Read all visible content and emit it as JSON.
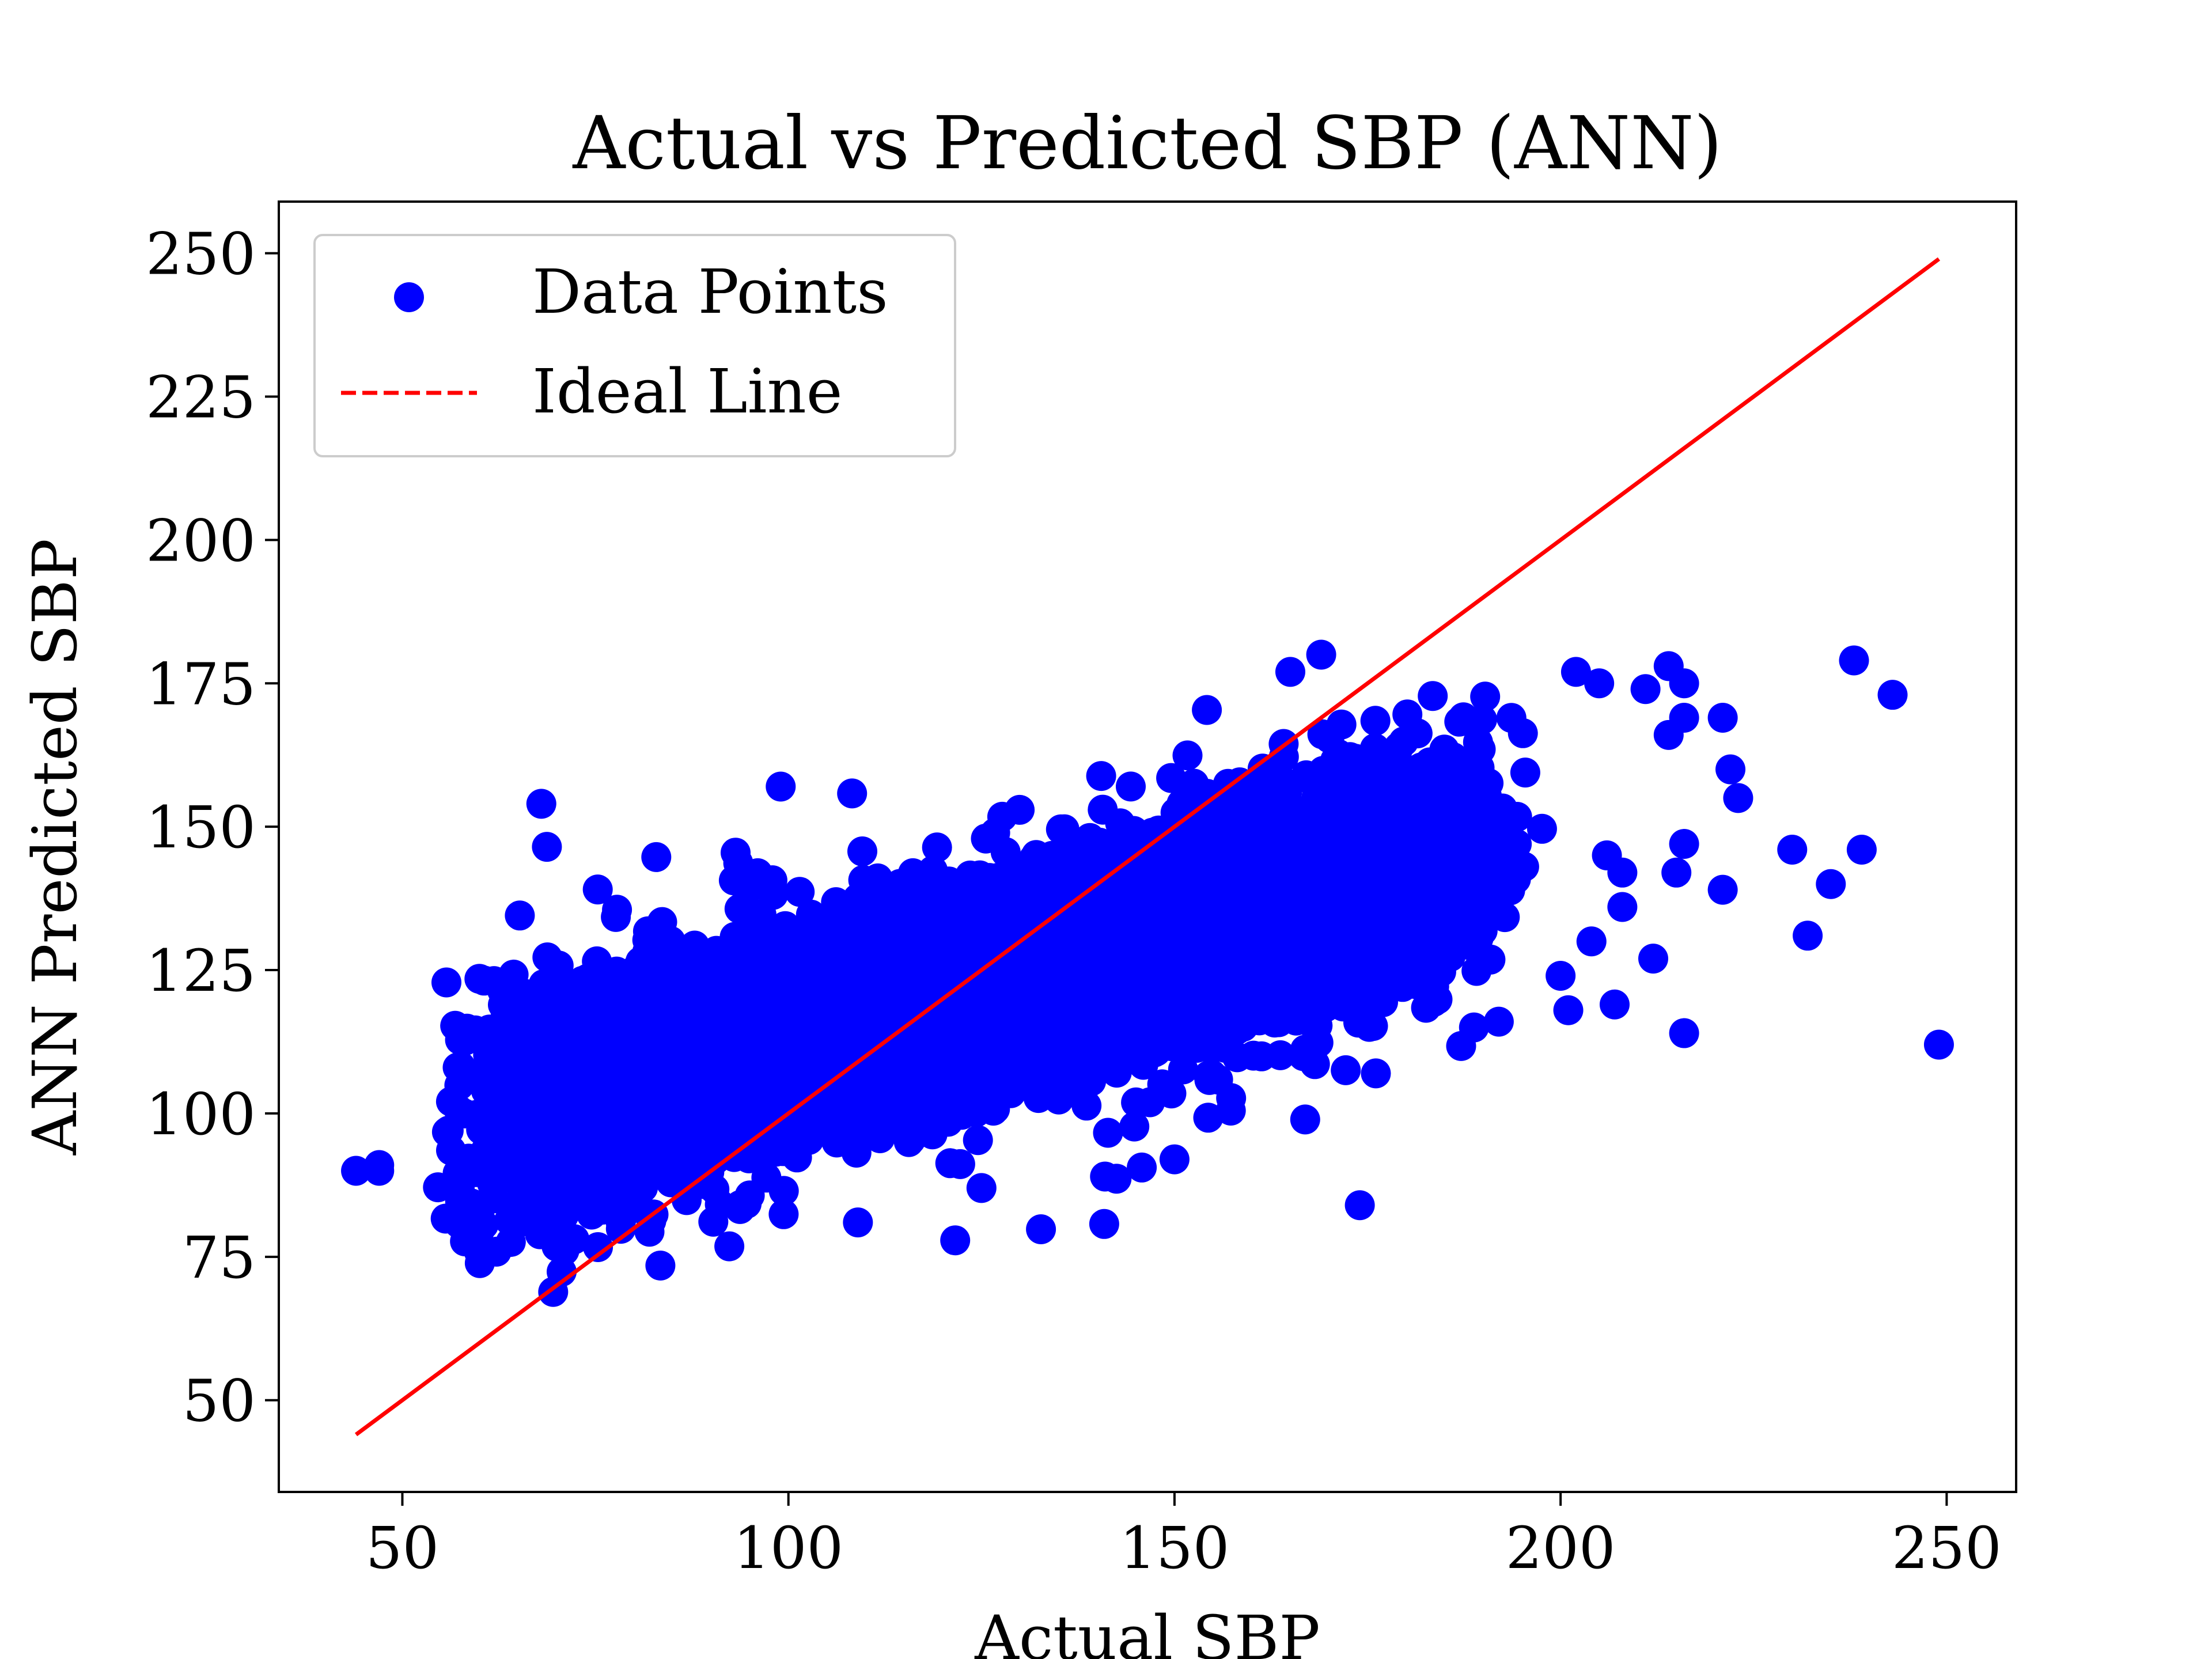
{
  "chart_data": {
    "type": "scatter",
    "title": "Actual vs Predicted SBP (ANN)",
    "xlabel": "Actual SBP",
    "ylabel": "ANN Predicted SBP",
    "xlim": [
      34,
      259
    ],
    "ylim": [
      34,
      259
    ],
    "xticks": [
      "50",
      "100",
      "150",
      "200",
      "250"
    ],
    "yticks": [
      "50",
      "75",
      "100",
      "125",
      "150",
      "175",
      "200",
      "225",
      "250"
    ],
    "xtick_values": [
      50,
      100,
      150,
      200,
      250
    ],
    "ytick_values": [
      50,
      75,
      100,
      125,
      150,
      175,
      200,
      225,
      250
    ],
    "grid": false,
    "legend": {
      "position": "top-left",
      "entries": [
        "Data Points",
        "Ideal Line"
      ]
    },
    "colors": {
      "points": "#0000ff",
      "ideal_line": "#ff0000"
    },
    "series": [
      {
        "name": "Data Points",
        "type": "scatter",
        "color": "#0000ff",
        "cloud": {
          "regression_slope": 0.36,
          "regression_intercept": 77,
          "x_range_dense": [
            60,
            192
          ],
          "residual_spread": 12
        },
        "outliers": [
          [
            44,
            90
          ],
          [
            47,
            91
          ],
          [
            47,
            90
          ],
          [
            56,
            97
          ],
          [
            58,
            100
          ],
          [
            60,
            82
          ],
          [
            68,
            154
          ],
          [
            99,
            157
          ],
          [
            109,
            81
          ],
          [
            169,
            180
          ],
          [
            165,
            177
          ],
          [
            174,
            84
          ],
          [
            202,
            177
          ],
          [
            205,
            175
          ],
          [
            214,
            178
          ],
          [
            216,
            175
          ],
          [
            211,
            174
          ],
          [
            216,
            169
          ],
          [
            221,
            169
          ],
          [
            214,
            166
          ],
          [
            222,
            160
          ],
          [
            223,
            155
          ],
          [
            230,
            146
          ],
          [
            232,
            131
          ],
          [
            235,
            140
          ],
          [
            238,
            179
          ],
          [
            239,
            146
          ],
          [
            243,
            173
          ],
          [
            249,
            112
          ],
          [
            216,
            114
          ],
          [
            221,
            139
          ],
          [
            215,
            142
          ],
          [
            216,
            147
          ],
          [
            201,
            118
          ],
          [
            207,
            119
          ],
          [
            212,
            127
          ],
          [
            208,
            136
          ],
          [
            206,
            145
          ],
          [
            208,
            142
          ],
          [
            204,
            130
          ],
          [
            200,
            124
          ],
          [
            192,
            116
          ],
          [
            141,
            89
          ],
          [
            150,
            92
          ],
          [
            125,
            87
          ]
        ]
      },
      {
        "name": "Ideal Line",
        "type": "line",
        "style": "dashed",
        "color": "#ff0000",
        "x": [
          44,
          249
        ],
        "y": [
          44,
          249
        ]
      }
    ]
  }
}
